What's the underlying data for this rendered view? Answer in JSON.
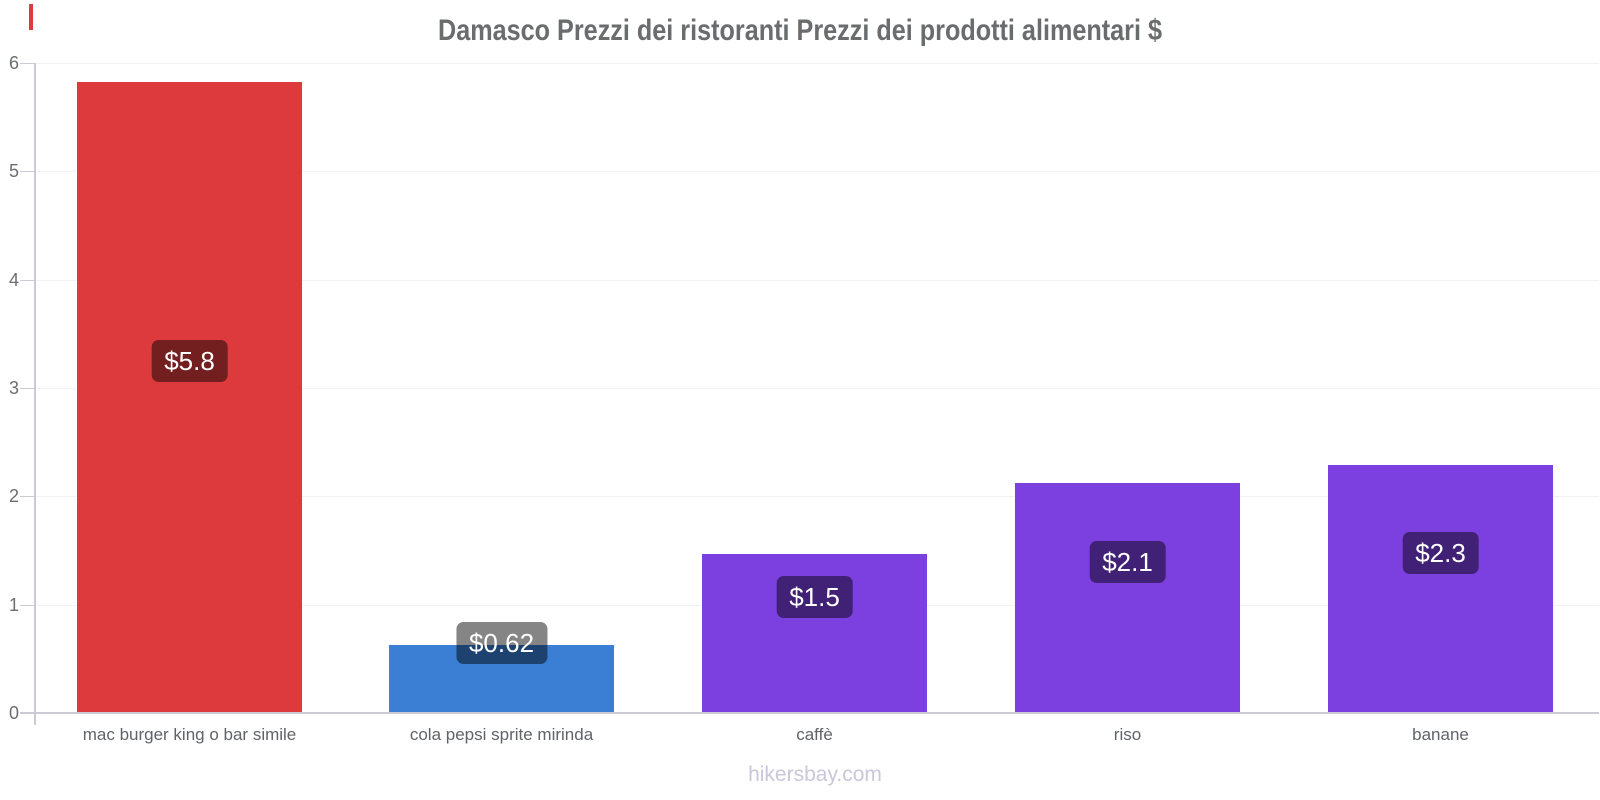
{
  "page": {
    "footer": "hikersbay.com",
    "edge_marker_color": "#dc3a3c",
    "background_color": "#ffffff",
    "title_color": "#6a6c6e",
    "axis_color": "#cbcad5",
    "gridline_color": "#f2f2f6",
    "badge_text_color": "#ffffff"
  },
  "chart_data": {
    "type": "bar",
    "title": "Damasco Prezzi dei ristoranti Prezzi dei prodotti alimentari $",
    "categories": [
      "mac burger king o bar simile",
      "cola pepsi sprite mirinda",
      "caffè",
      "riso",
      "banane"
    ],
    "values": [
      5.82,
      0.62,
      1.46,
      2.11,
      2.28
    ],
    "value_labels": [
      "$5.8",
      "$0.62",
      "$1.5",
      "$2.1",
      "$2.3"
    ],
    "bar_colors": [
      "#dc3a3c",
      "#3b7fd5",
      "#7c40e0",
      "#7c40e0",
      "#7c40e0"
    ],
    "currency": "$",
    "xlabel": "",
    "ylabel": "",
    "ylim": [
      0,
      6
    ],
    "yticks": [
      0,
      1,
      2,
      3,
      4,
      5,
      6
    ],
    "grid": true,
    "legend": false
  }
}
